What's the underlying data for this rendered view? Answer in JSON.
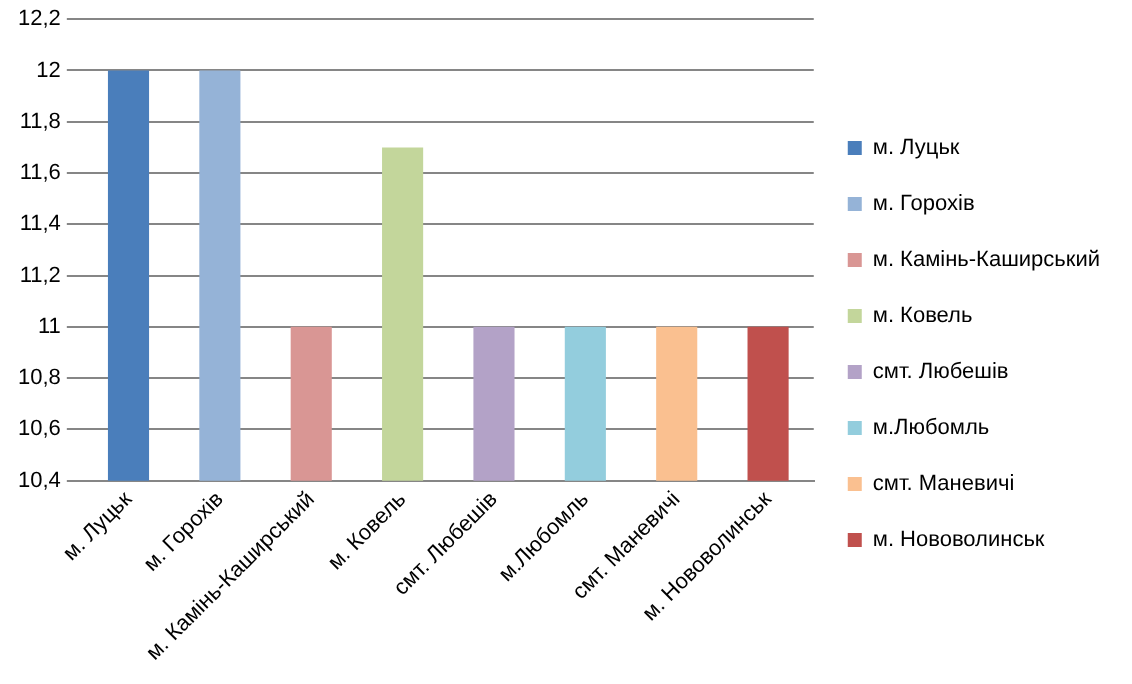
{
  "chart_data": {
    "type": "bar",
    "categories": [
      "м. Луцьк",
      "м. Горохів",
      "м. Камінь-Каширський",
      "м. Ковель",
      "смт. Любешів",
      "м.Любомль",
      "смт. Маневичі",
      "м. Нововолинськ"
    ],
    "series": [
      {
        "name": "м. Луцьк",
        "color": "#4a7ebb",
        "values": [
          12,
          null,
          null,
          null,
          null,
          null,
          null,
          null
        ]
      },
      {
        "name": "м. Горохів",
        "color": "#95b3d7",
        "values": [
          null,
          12,
          null,
          null,
          null,
          null,
          null,
          null
        ]
      },
      {
        "name": "м. Камінь-Каширський",
        "color": "#d99694",
        "values": [
          null,
          null,
          11,
          null,
          null,
          null,
          null,
          null
        ]
      },
      {
        "name": "м. Ковель",
        "color": "#c3d69b",
        "values": [
          null,
          null,
          null,
          11.7,
          null,
          null,
          null,
          null
        ]
      },
      {
        "name": "смт. Любешів",
        "color": "#b3a2c7",
        "values": [
          null,
          null,
          null,
          null,
          11,
          null,
          null,
          null
        ]
      },
      {
        "name": "м.Любомль",
        "color": "#93cddd",
        "values": [
          null,
          null,
          null,
          null,
          null,
          11,
          null,
          null
        ]
      },
      {
        "name": "смт. Маневичі",
        "color": "#fac090",
        "values": [
          null,
          null,
          null,
          null,
          null,
          null,
          11,
          null
        ]
      },
      {
        "name": "м. Нововолинськ",
        "color": "#c0504d",
        "values": [
          null,
          null,
          null,
          null,
          null,
          null,
          null,
          11
        ]
      }
    ],
    "ylim": [
      10.4,
      12.2
    ],
    "yticks": [
      {
        "value": 10.4,
        "label": "10,4"
      },
      {
        "value": 10.6,
        "label": "10,6"
      },
      {
        "value": 10.8,
        "label": "10,8"
      },
      {
        "value": 11,
        "label": "11"
      },
      {
        "value": 11.2,
        "label": "11,2"
      },
      {
        "value": 11.4,
        "label": "11,4"
      },
      {
        "value": 11.6,
        "label": "11,6"
      },
      {
        "value": 11.8,
        "label": "11,8"
      },
      {
        "value": 12,
        "label": "12"
      },
      {
        "value": 12.2,
        "label": "12,2"
      }
    ],
    "grid": "y",
    "legend": "right"
  }
}
